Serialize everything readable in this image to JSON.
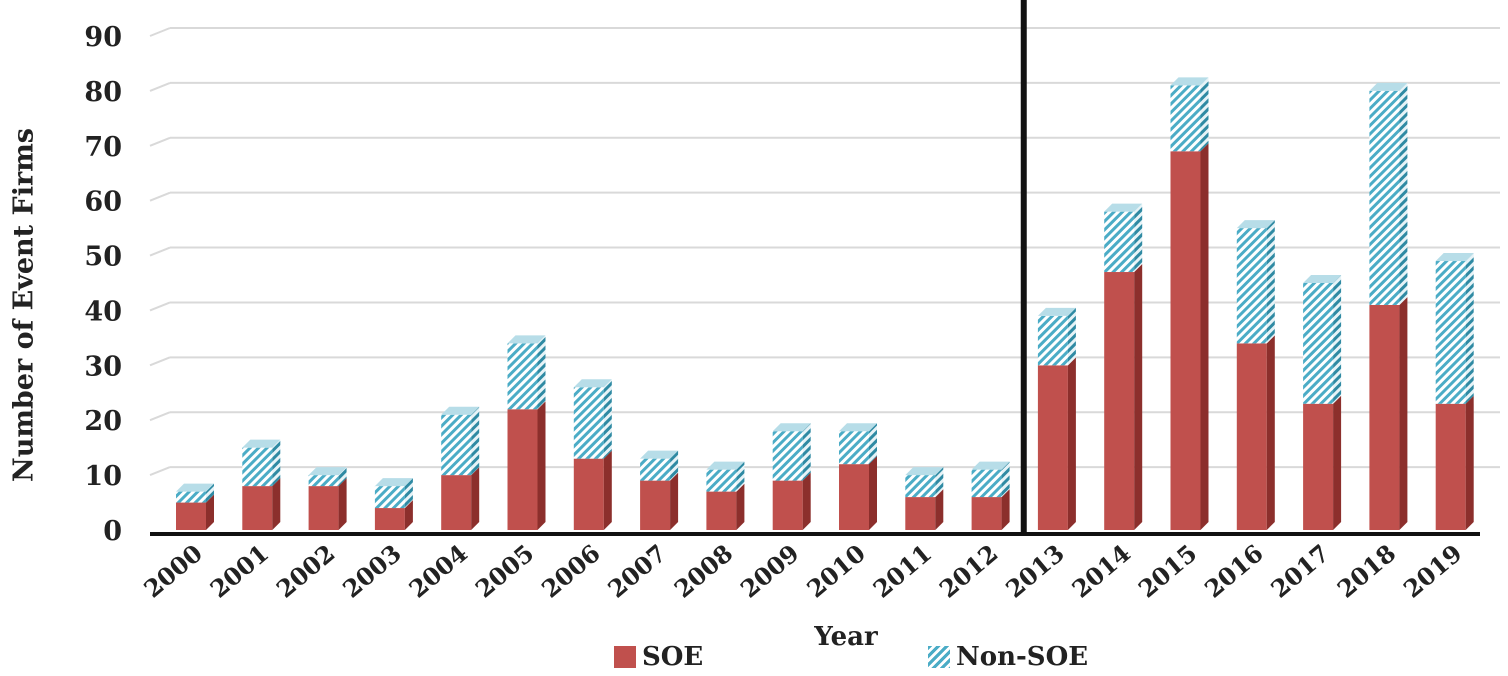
{
  "chart_data": {
    "type": "bar",
    "stacked": true,
    "categories": [
      "2000",
      "2001",
      "2002",
      "2003",
      "2004",
      "2005",
      "2006",
      "2007",
      "2008",
      "2009",
      "2010",
      "2011",
      "2012",
      "2013",
      "2014",
      "2015",
      "2016",
      "2017",
      "2018",
      "2019"
    ],
    "series": [
      {
        "name": "SOE",
        "values": [
          5,
          8,
          8,
          4,
          10,
          22,
          13,
          9,
          7,
          9,
          12,
          6,
          6,
          30,
          47,
          69,
          34,
          23,
          41,
          23
        ]
      },
      {
        "name": "Non-SOE",
        "values": [
          2,
          7,
          2,
          4,
          11,
          12,
          13,
          4,
          4,
          9,
          6,
          4,
          5,
          9,
          11,
          12,
          21,
          22,
          39,
          26
        ]
      }
    ],
    "xlabel": "Year",
    "ylabel": "Number of Event Firms",
    "ylim": [
      0,
      90
    ],
    "yticks": [
      0,
      10,
      20,
      30,
      40,
      50,
      60,
      70,
      80,
      90
    ],
    "grid": true,
    "legend_position": "bottom",
    "reference_line_between": [
      "2012",
      "2013"
    ],
    "colors": {
      "SOE": "#c0504d",
      "SOE_side": "#8c2f2c",
      "Non-SOE": "#4bacc6"
    }
  }
}
